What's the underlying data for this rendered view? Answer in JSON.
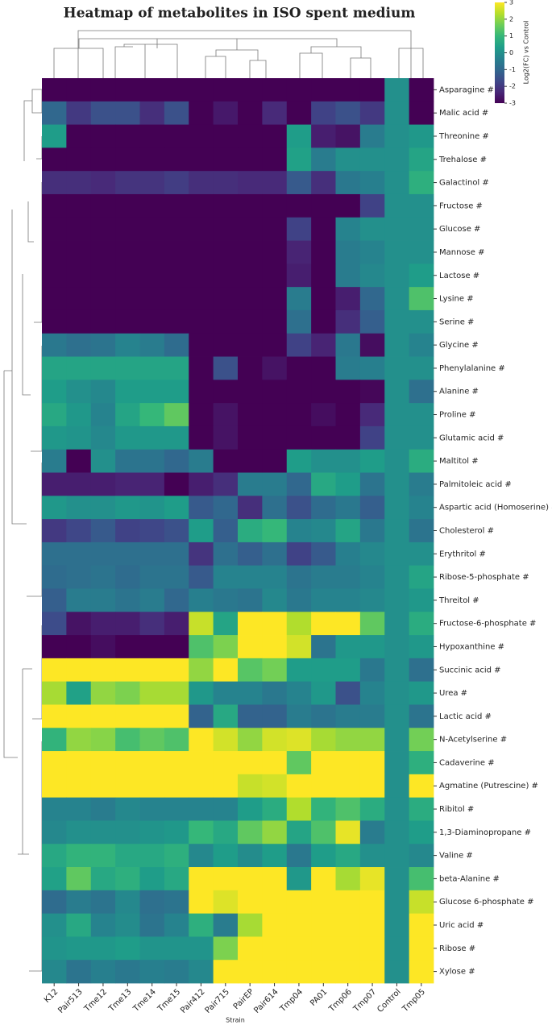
{
  "chart_data": {
    "type": "heatmap",
    "title": "Heatmap of metabolites in ISO spent medium",
    "x_label": "Strain",
    "colorbar_label": "Log2(FC) vs Control",
    "colormap": "viridis",
    "zlim": [
      -3,
      3
    ],
    "zticks": [
      -3,
      -2,
      -1,
      0,
      1,
      2,
      3
    ],
    "columns": [
      "K12",
      "Pair513",
      "Tme12",
      "Tme13",
      "Tme14",
      "Tme15",
      "Pair412",
      "Pair715",
      "PairEP",
      "Pair614",
      "Tmp04",
      "PA01",
      "Tmp06",
      "Tmp07",
      "Control",
      "Tmp05"
    ],
    "rows": [
      "Asparagine #",
      "Malic acid #",
      "Threonine #",
      "Trehalose #",
      "Galactinol #",
      "Fructose #",
      "Glucose #",
      "Mannose #",
      "Lactose #",
      "Lysine #",
      "Serine #",
      "Glycine #",
      "Phenylalanine #",
      "Alanine #",
      "Proline #",
      "Glutamic acid #",
      "Maltitol #",
      "Palmitoleic acid #",
      "Aspartic acid (Homoserine) #",
      "Cholesterol #",
      "Erythritol #",
      "Ribose-5-phosphate #",
      "Threitol #",
      "Fructose-6-phosphate #",
      "Hypoxanthine #",
      "Succinic acid #",
      "Urea #",
      "Lactic acid #",
      "N-Acetylserine #",
      "Cadaverine #",
      "Agmatine (Putrescine) #",
      "Ribitol #",
      "1,3-Diaminopropane #",
      "Valine #",
      "beta-Alanine #",
      "Glucose 6-phosphate #",
      "Uric acid #",
      "Ribose #",
      "Xylose #"
    ],
    "values": [
      [
        -3,
        -3,
        -3,
        -3,
        -3,
        -3,
        -3,
        -3,
        -3,
        -3,
        -3,
        -3,
        -3,
        -3,
        0,
        -3
      ],
      [
        -1,
        -2,
        -1.5,
        -1.5,
        -2.2,
        -1.5,
        -3,
        -2.6,
        -3,
        -2.3,
        -3,
        -1.8,
        -1.5,
        -2,
        0,
        -3
      ],
      [
        0.3,
        -3,
        -3,
        -3,
        -3,
        -3,
        -3,
        -3,
        -3,
        -3,
        0.3,
        -2.5,
        -2.7,
        -0.5,
        0,
        0.2
      ],
      [
        -3,
        -3,
        -3,
        -3,
        -3,
        -3,
        -3,
        -3,
        -3,
        -3,
        0.4,
        -0.5,
        0,
        0,
        0,
        0.5
      ],
      [
        -2.2,
        -2.2,
        -2.3,
        -2.1,
        -2.1,
        -1.9,
        -2.2,
        -2.2,
        -2.3,
        -2.3,
        -1.3,
        -2.2,
        -0.6,
        -0.4,
        0,
        0.8
      ],
      [
        -3,
        -3,
        -3,
        -3,
        -3,
        -3,
        -3,
        -3,
        -3,
        -3,
        -3,
        -3,
        -3,
        -1.8,
        0,
        0
      ],
      [
        -3,
        -3,
        -3,
        -3,
        -3,
        -3,
        -3,
        -3,
        -3,
        -3,
        -1.8,
        -3,
        -0.3,
        0,
        0,
        0
      ],
      [
        -3,
        -3,
        -3,
        -3,
        -3,
        -3,
        -3,
        -3,
        -3,
        -3,
        -2.4,
        -3,
        -0.5,
        -0.3,
        0,
        0
      ],
      [
        -3,
        -3,
        -3,
        -3,
        -3,
        -3,
        -3,
        -3,
        -3,
        -3,
        -2.5,
        -3,
        -0.5,
        -0.2,
        0,
        0.3
      ],
      [
        -3,
        -3,
        -3,
        -3,
        -3,
        -3,
        -3,
        -3,
        -3,
        -3,
        -0.5,
        -3,
        -2.5,
        -1,
        0,
        1.3
      ],
      [
        -3,
        -3,
        -3,
        -3,
        -3,
        -3,
        -3,
        -3,
        -3,
        -3,
        -0.8,
        -3,
        -2.2,
        -1.2,
        0,
        0
      ],
      [
        -0.6,
        -0.8,
        -0.7,
        -0.3,
        -0.5,
        -0.9,
        -3,
        -3,
        -3,
        -3,
        -1.8,
        -2.4,
        -0.6,
        -2.8,
        0,
        -0.3
      ],
      [
        0.5,
        0.5,
        0.5,
        0.5,
        0.5,
        0.5,
        -3,
        -1.5,
        -3,
        -2.7,
        -3,
        -3,
        -0.5,
        -0.4,
        0,
        0
      ],
      [
        0.3,
        0,
        -0.2,
        0.3,
        0.3,
        0.3,
        -3,
        -3,
        -3,
        -3,
        -3,
        -3,
        -3,
        -2.9,
        0,
        -0.8
      ],
      [
        0.6,
        0.2,
        -0.3,
        0.5,
        1,
        1.5,
        -3,
        -2.7,
        -3,
        -3,
        -3,
        -2.8,
        -3,
        -2.3,
        0,
        0
      ],
      [
        0.2,
        0.1,
        -0.2,
        0.2,
        0.2,
        0.2,
        -3,
        -2.7,
        -3,
        -3,
        -3,
        -3,
        -3,
        -1.8,
        0,
        0
      ],
      [
        -0.5,
        -3,
        0,
        -0.7,
        -0.7,
        -1,
        -0.5,
        -3,
        -3,
        -3,
        0.3,
        0,
        0,
        0.3,
        0,
        0.7
      ],
      [
        -2.5,
        -2.5,
        -2.5,
        -2.4,
        -2.4,
        -3,
        -2.5,
        -2.2,
        -0.5,
        -0.5,
        -1,
        0.6,
        0.3,
        -0.7,
        0,
        -0.5
      ],
      [
        0.2,
        0,
        0,
        0.2,
        0.1,
        0.3,
        -1.3,
        -1,
        -2.2,
        -0.8,
        -1.5,
        -0.9,
        -0.6,
        -1.2,
        0,
        -0.3
      ],
      [
        -2,
        -1.7,
        -1.3,
        -1.8,
        -1.7,
        -1.5,
        0.3,
        -1.2,
        0.7,
        1,
        -0.3,
        -0.2,
        0.5,
        -0.6,
        0,
        -0.7
      ],
      [
        -0.8,
        -0.8,
        -0.8,
        -0.8,
        -0.8,
        -0.8,
        -2.1,
        -0.8,
        -1.2,
        -0.8,
        -1.8,
        -1.3,
        -0.4,
        -0.2,
        0,
        0
      ],
      [
        -0.9,
        -0.8,
        -0.7,
        -0.9,
        -0.7,
        -0.7,
        -1.3,
        -0.3,
        -0.3,
        -0.3,
        -0.7,
        -0.5,
        -0.5,
        -0.3,
        0,
        0.5
      ],
      [
        -1.2,
        -0.5,
        -0.5,
        -0.7,
        -0.5,
        -1,
        -0.4,
        -0.6,
        -0.7,
        -0.2,
        -0.6,
        -0.3,
        -0.3,
        -0.2,
        0,
        0.2
      ],
      [
        -1.6,
        -2.7,
        -2.5,
        -2.5,
        -2.2,
        -2.5,
        2.5,
        0.5,
        3,
        3,
        2.3,
        3,
        3,
        1.5,
        0,
        0.7
      ],
      [
        -3,
        -3,
        -2.8,
        -3,
        -3,
        -3,
        1.3,
        1.8,
        3,
        3,
        2.6,
        -0.7,
        0.2,
        0.2,
        0,
        0.2
      ],
      [
        3,
        3,
        3,
        3,
        3,
        3,
        2,
        3,
        1.4,
        1.7,
        0.3,
        0.3,
        0.3,
        -0.6,
        0,
        -0.8
      ],
      [
        2.2,
        0.4,
        2,
        1.8,
        2.2,
        2.2,
        0.2,
        -0.3,
        -0.3,
        -0.6,
        -0.3,
        0.2,
        -1.5,
        -0.3,
        0,
        0.2
      ],
      [
        3,
        3,
        3,
        3,
        3,
        3,
        -1.1,
        0.6,
        -1.1,
        -1.1,
        -0.5,
        -0.7,
        -0.5,
        -0.5,
        0,
        -0.7
      ],
      [
        0.9,
        2,
        1.9,
        1.2,
        1.5,
        1.3,
        3,
        2.6,
        2,
        2.6,
        2.7,
        2.2,
        2,
        2,
        0,
        1.7
      ],
      [
        3,
        3,
        3,
        3,
        3,
        3,
        3,
        3,
        3,
        3,
        1.5,
        3,
        3,
        3,
        0,
        0.8
      ],
      [
        3,
        3,
        3,
        3,
        3,
        3,
        3,
        3,
        2.5,
        2.6,
        3,
        3,
        3,
        3,
        0,
        3
      ],
      [
        -0.3,
        -0.3,
        -0.5,
        -0.2,
        -0.3,
        -0.3,
        -0.3,
        -0.3,
        0.3,
        0.7,
        2.3,
        0.9,
        1.3,
        0.7,
        0,
        0.7
      ],
      [
        -0.2,
        0,
        0,
        0,
        0.1,
        0.2,
        1,
        0.6,
        1.5,
        2,
        0.5,
        1.3,
        2.8,
        -0.5,
        0,
        0.3
      ],
      [
        0.6,
        0.9,
        0.9,
        0.6,
        0.6,
        0.8,
        -0.2,
        0.3,
        -0.1,
        0.3,
        -0.6,
        0.3,
        0.6,
        0,
        0,
        -0.2
      ],
      [
        0.4,
        1.5,
        0.6,
        0.8,
        0.3,
        0.6,
        3,
        3,
        3,
        3,
        0.2,
        3,
        2.2,
        2.8,
        0,
        1.2
      ],
      [
        -0.9,
        -0.5,
        -0.7,
        -0.2,
        -0.8,
        -0.7,
        3,
        2.7,
        3,
        3,
        3,
        3,
        3,
        3,
        0,
        2.5
      ],
      [
        0,
        0.6,
        -0.3,
        -0.1,
        -0.7,
        -0.3,
        0.8,
        -0.5,
        2.2,
        3,
        3,
        3,
        3,
        3,
        0,
        3
      ],
      [
        0.1,
        0.2,
        0.2,
        0.3,
        0.1,
        0.1,
        0.1,
        1.8,
        3,
        3,
        3,
        3,
        3,
        3,
        0,
        3
      ],
      [
        -0.2,
        -0.7,
        -0.4,
        -0.6,
        -0.4,
        -0.5,
        -0.2,
        3,
        3,
        3,
        3,
        3,
        3,
        3,
        0,
        3
      ]
    ]
  }
}
